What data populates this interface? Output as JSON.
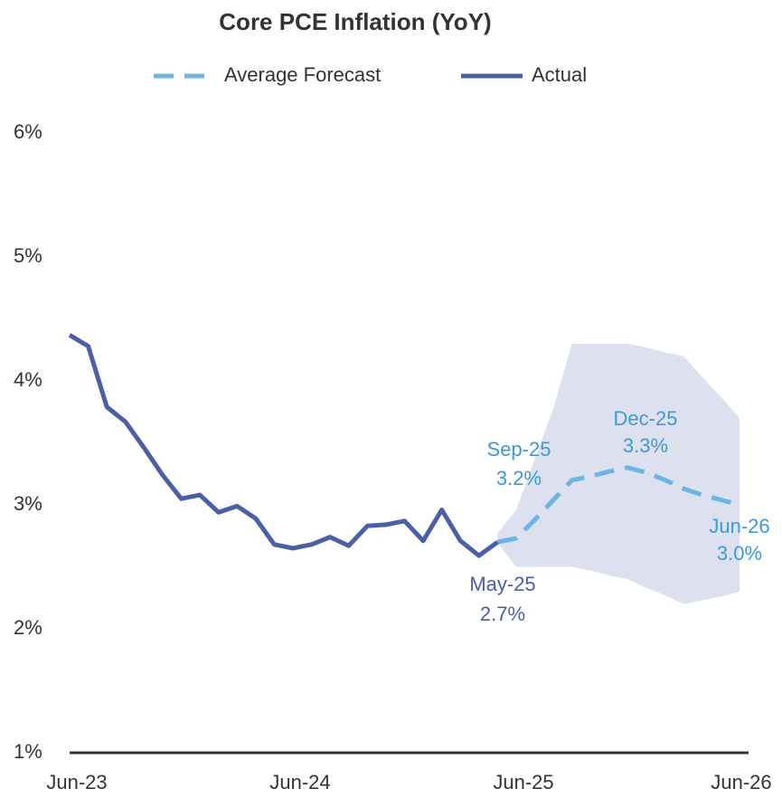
{
  "chart_data": {
    "type": "line",
    "title": "Core PCE Inflation (YoY)",
    "categories": [
      "Jun-23",
      null,
      null,
      null,
      null,
      null,
      null,
      null,
      null,
      null,
      null,
      null,
      "Jun-24",
      null,
      null,
      null,
      null,
      null,
      null,
      null,
      null,
      null,
      null,
      null,
      "Jun-25",
      null,
      null,
      null,
      null,
      null,
      null,
      null,
      null,
      null,
      null,
      null,
      "Jun-26"
    ],
    "series": [
      {
        "name": "Average Forecast",
        "color": "#6cb4e4",
        "dashed": true,
        "values": [
          null,
          null,
          null,
          null,
          null,
          null,
          null,
          null,
          null,
          null,
          null,
          null,
          null,
          null,
          null,
          null,
          null,
          null,
          null,
          null,
          null,
          null,
          null,
          2.7,
          2.73,
          2.88,
          3.04,
          3.2,
          3.23,
          3.27,
          3.3,
          3.26,
          3.2,
          3.13,
          3.08,
          3.04,
          3.0
        ]
      },
      {
        "name": "Actual",
        "color": "#4a5fa5",
        "dashed": false,
        "values": [
          4.37,
          4.28,
          3.79,
          3.67,
          3.46,
          3.24,
          3.05,
          3.08,
          2.94,
          2.99,
          2.89,
          2.68,
          2.65,
          2.68,
          2.74,
          2.67,
          2.83,
          2.84,
          2.87,
          2.71,
          2.96,
          2.71,
          2.59,
          2.7,
          null,
          null,
          null,
          null,
          null,
          null,
          null,
          null,
          null,
          null,
          null,
          null,
          null
        ]
      }
    ],
    "band": {
      "color": "#dde1ef",
      "upper": [
        null,
        null,
        null,
        null,
        null,
        null,
        null,
        null,
        null,
        null,
        null,
        null,
        null,
        null,
        null,
        null,
        null,
        null,
        null,
        null,
        null,
        null,
        null,
        2.77,
        2.96,
        3.37,
        3.78,
        4.3,
        4.3,
        4.3,
        4.3,
        4.27,
        4.23,
        4.2,
        4.03,
        3.87,
        3.7
      ],
      "lower": [
        null,
        null,
        null,
        null,
        null,
        null,
        null,
        null,
        null,
        null,
        null,
        null,
        null,
        null,
        null,
        null,
        null,
        null,
        null,
        null,
        null,
        null,
        null,
        2.69,
        2.5,
        2.5,
        2.5,
        2.5,
        2.47,
        2.43,
        2.4,
        2.33,
        2.27,
        2.2,
        2.23,
        2.26,
        2.3
      ]
    },
    "annotations": [
      {
        "date": "Sep-25",
        "value": 3.2,
        "value_label": "3.2%",
        "color": "#3a9ad9"
      },
      {
        "date": "Dec-25",
        "value": 3.3,
        "value_label": "3.3%",
        "color": "#3a9ad9"
      },
      {
        "date": "Jun-26",
        "value": 3.0,
        "value_label": "3.0%",
        "color": "#3a9ad9"
      },
      {
        "date": "May-25",
        "value": 2.7,
        "value_label": "2.7%",
        "color": "#4a5fa5"
      }
    ],
    "ylim": [
      1,
      6
    ],
    "yticks": [
      {
        "value": 1,
        "label": "1%"
      },
      {
        "value": 2,
        "label": "2%"
      },
      {
        "value": 3,
        "label": "3%"
      },
      {
        "value": 4,
        "label": "4%"
      },
      {
        "value": 5,
        "label": "5%"
      },
      {
        "value": 6,
        "label": "6%"
      }
    ],
    "grid": false,
    "legend": "top"
  }
}
